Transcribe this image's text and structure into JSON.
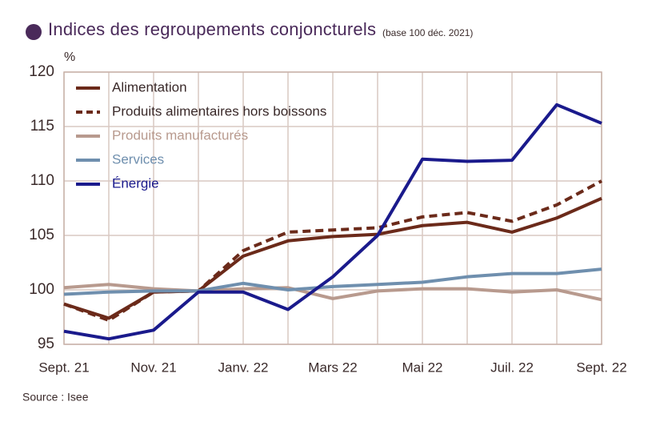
{
  "chart_data": {
    "type": "line",
    "title": "Indices des regroupements conjoncturels",
    "subtitle": "(base 100 déc. 2021)",
    "y_label": "%",
    "source": "Source : Isee",
    "categories": [
      "Sept. 21",
      null,
      "Nov. 21",
      null,
      "Janv. 22",
      null,
      "Mars 22",
      null,
      "Mai 22",
      null,
      "Juil. 22",
      null,
      "Sept. 22"
    ],
    "series": [
      {
        "name": "Alimentation",
        "color": "#6b2a1a",
        "dashed": false,
        "values": [
          98.7,
          97.4,
          99.8,
          99.9,
          103.1,
          104.5,
          104.9,
          105.1,
          105.9,
          106.2,
          105.3,
          106.6,
          108.4
        ]
      },
      {
        "name": "Produits alimentaires hors boissons",
        "color": "#6b2a1a",
        "dashed": true,
        "values": [
          98.7,
          97.2,
          99.8,
          99.9,
          103.6,
          105.3,
          105.5,
          105.7,
          106.7,
          107.1,
          106.3,
          107.8,
          110.0
        ]
      },
      {
        "name": "Produits manufacturés",
        "color": "#b89a8e",
        "dashed": false,
        "values": [
          100.2,
          100.5,
          100.1,
          99.9,
          100.1,
          100.2,
          99.2,
          99.9,
          100.1,
          100.1,
          99.8,
          100.0,
          99.1
        ]
      },
      {
        "name": "Services",
        "color": "#6f8fae",
        "dashed": false,
        "values": [
          99.6,
          99.8,
          99.9,
          99.9,
          100.6,
          100.0,
          100.3,
          100.5,
          100.7,
          101.2,
          101.5,
          101.5,
          101.9
        ]
      },
      {
        "name": "Énergie",
        "color": "#1a1a8c",
        "dashed": false,
        "values": [
          96.2,
          95.5,
          96.3,
          99.8,
          99.8,
          98.2,
          101.2,
          105.0,
          112.0,
          111.8,
          111.9,
          117.0,
          115.3
        ]
      }
    ],
    "ylim": [
      95,
      120
    ],
    "yticks": [
      95,
      100,
      105,
      110,
      115,
      120
    ],
    "grid": true
  }
}
